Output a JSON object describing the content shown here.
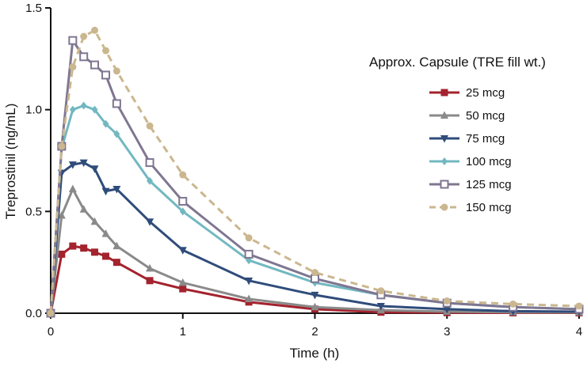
{
  "chart_data": {
    "type": "line",
    "title": "",
    "xlabel": "Time (h)",
    "ylabel": "Treprostinil (ng/mL)",
    "xlim": [
      0,
      4
    ],
    "ylim": [
      0,
      1.5
    ],
    "xticks": [
      0,
      1,
      2,
      3,
      4
    ],
    "xtick_labels": [
      "0",
      "1",
      "2",
      "3",
      "4"
    ],
    "yticks": [
      0,
      0.5,
      1.0,
      1.5
    ],
    "ytick_labels": [
      "0.0",
      "0.5",
      "1.0",
      "1.5"
    ],
    "grid": false,
    "legend": {
      "title": "Approx. Capsule (TRE fill wt.)",
      "placement": "right"
    },
    "series": [
      {
        "name": "25 mcg",
        "color": "#a3232e",
        "marker": "square",
        "dashed": false,
        "x": [
          0,
          0.083,
          0.167,
          0.25,
          0.333,
          0.417,
          0.5,
          0.75,
          1,
          1.5,
          2,
          2.5,
          3,
          3.5,
          4
        ],
        "y": [
          0,
          0.29,
          0.33,
          0.32,
          0.3,
          0.28,
          0.25,
          0.16,
          0.12,
          0.055,
          0.02,
          0.005,
          0.003,
          0.002,
          0.002
        ]
      },
      {
        "name": "50 mcg",
        "color": "#8a8a8a",
        "marker": "triangle-up",
        "dashed": false,
        "x": [
          0,
          0.083,
          0.167,
          0.25,
          0.333,
          0.417,
          0.5,
          0.75,
          1,
          1.5,
          2,
          2.5,
          3,
          3.5,
          4
        ],
        "y": [
          0,
          0.48,
          0.61,
          0.51,
          0.45,
          0.39,
          0.33,
          0.22,
          0.15,
          0.07,
          0.03,
          0.015,
          0.008,
          0.005,
          0.004
        ]
      },
      {
        "name": "75 mcg",
        "color": "#2f4c7a",
        "marker": "triangle-down",
        "dashed": false,
        "x": [
          0,
          0.083,
          0.167,
          0.25,
          0.333,
          0.417,
          0.5,
          0.75,
          1,
          1.5,
          2,
          2.5,
          3,
          3.5,
          4
        ],
        "y": [
          0,
          0.69,
          0.73,
          0.74,
          0.71,
          0.6,
          0.61,
          0.45,
          0.31,
          0.16,
          0.09,
          0.035,
          0.02,
          0.01,
          0.008
        ]
      },
      {
        "name": "100 mcg",
        "color": "#72b8c1",
        "marker": "diamond",
        "dashed": false,
        "x": [
          0,
          0.083,
          0.167,
          0.25,
          0.333,
          0.417,
          0.5,
          0.75,
          1,
          1.5,
          2,
          2.5,
          3,
          3.5,
          4
        ],
        "y": [
          0,
          0.81,
          1.0,
          1.02,
          1.0,
          0.93,
          0.88,
          0.65,
          0.5,
          0.26,
          0.15,
          0.09,
          0.05,
          0.03,
          0.02
        ]
      },
      {
        "name": "125 mcg",
        "color": "#7f7691",
        "marker": "square-open",
        "dashed": false,
        "x": [
          0,
          0.083,
          0.167,
          0.25,
          0.333,
          0.417,
          0.5,
          0.75,
          1,
          1.5,
          2,
          2.5,
          3,
          3.5,
          4
        ],
        "y": [
          0,
          0.82,
          1.34,
          1.26,
          1.22,
          1.17,
          1.03,
          0.74,
          0.55,
          0.29,
          0.17,
          0.09,
          0.05,
          0.03,
          0.02
        ]
      },
      {
        "name": "150 mcg",
        "color": "#cbb78f",
        "marker": "circle",
        "dashed": true,
        "x": [
          0,
          0.083,
          0.167,
          0.25,
          0.333,
          0.417,
          0.5,
          0.75,
          1,
          1.5,
          2,
          2.5,
          3,
          3.5,
          4
        ],
        "y": [
          0,
          0.82,
          1.21,
          1.36,
          1.39,
          1.29,
          1.19,
          0.92,
          0.68,
          0.37,
          0.2,
          0.11,
          0.06,
          0.045,
          0.035
        ]
      }
    ]
  }
}
